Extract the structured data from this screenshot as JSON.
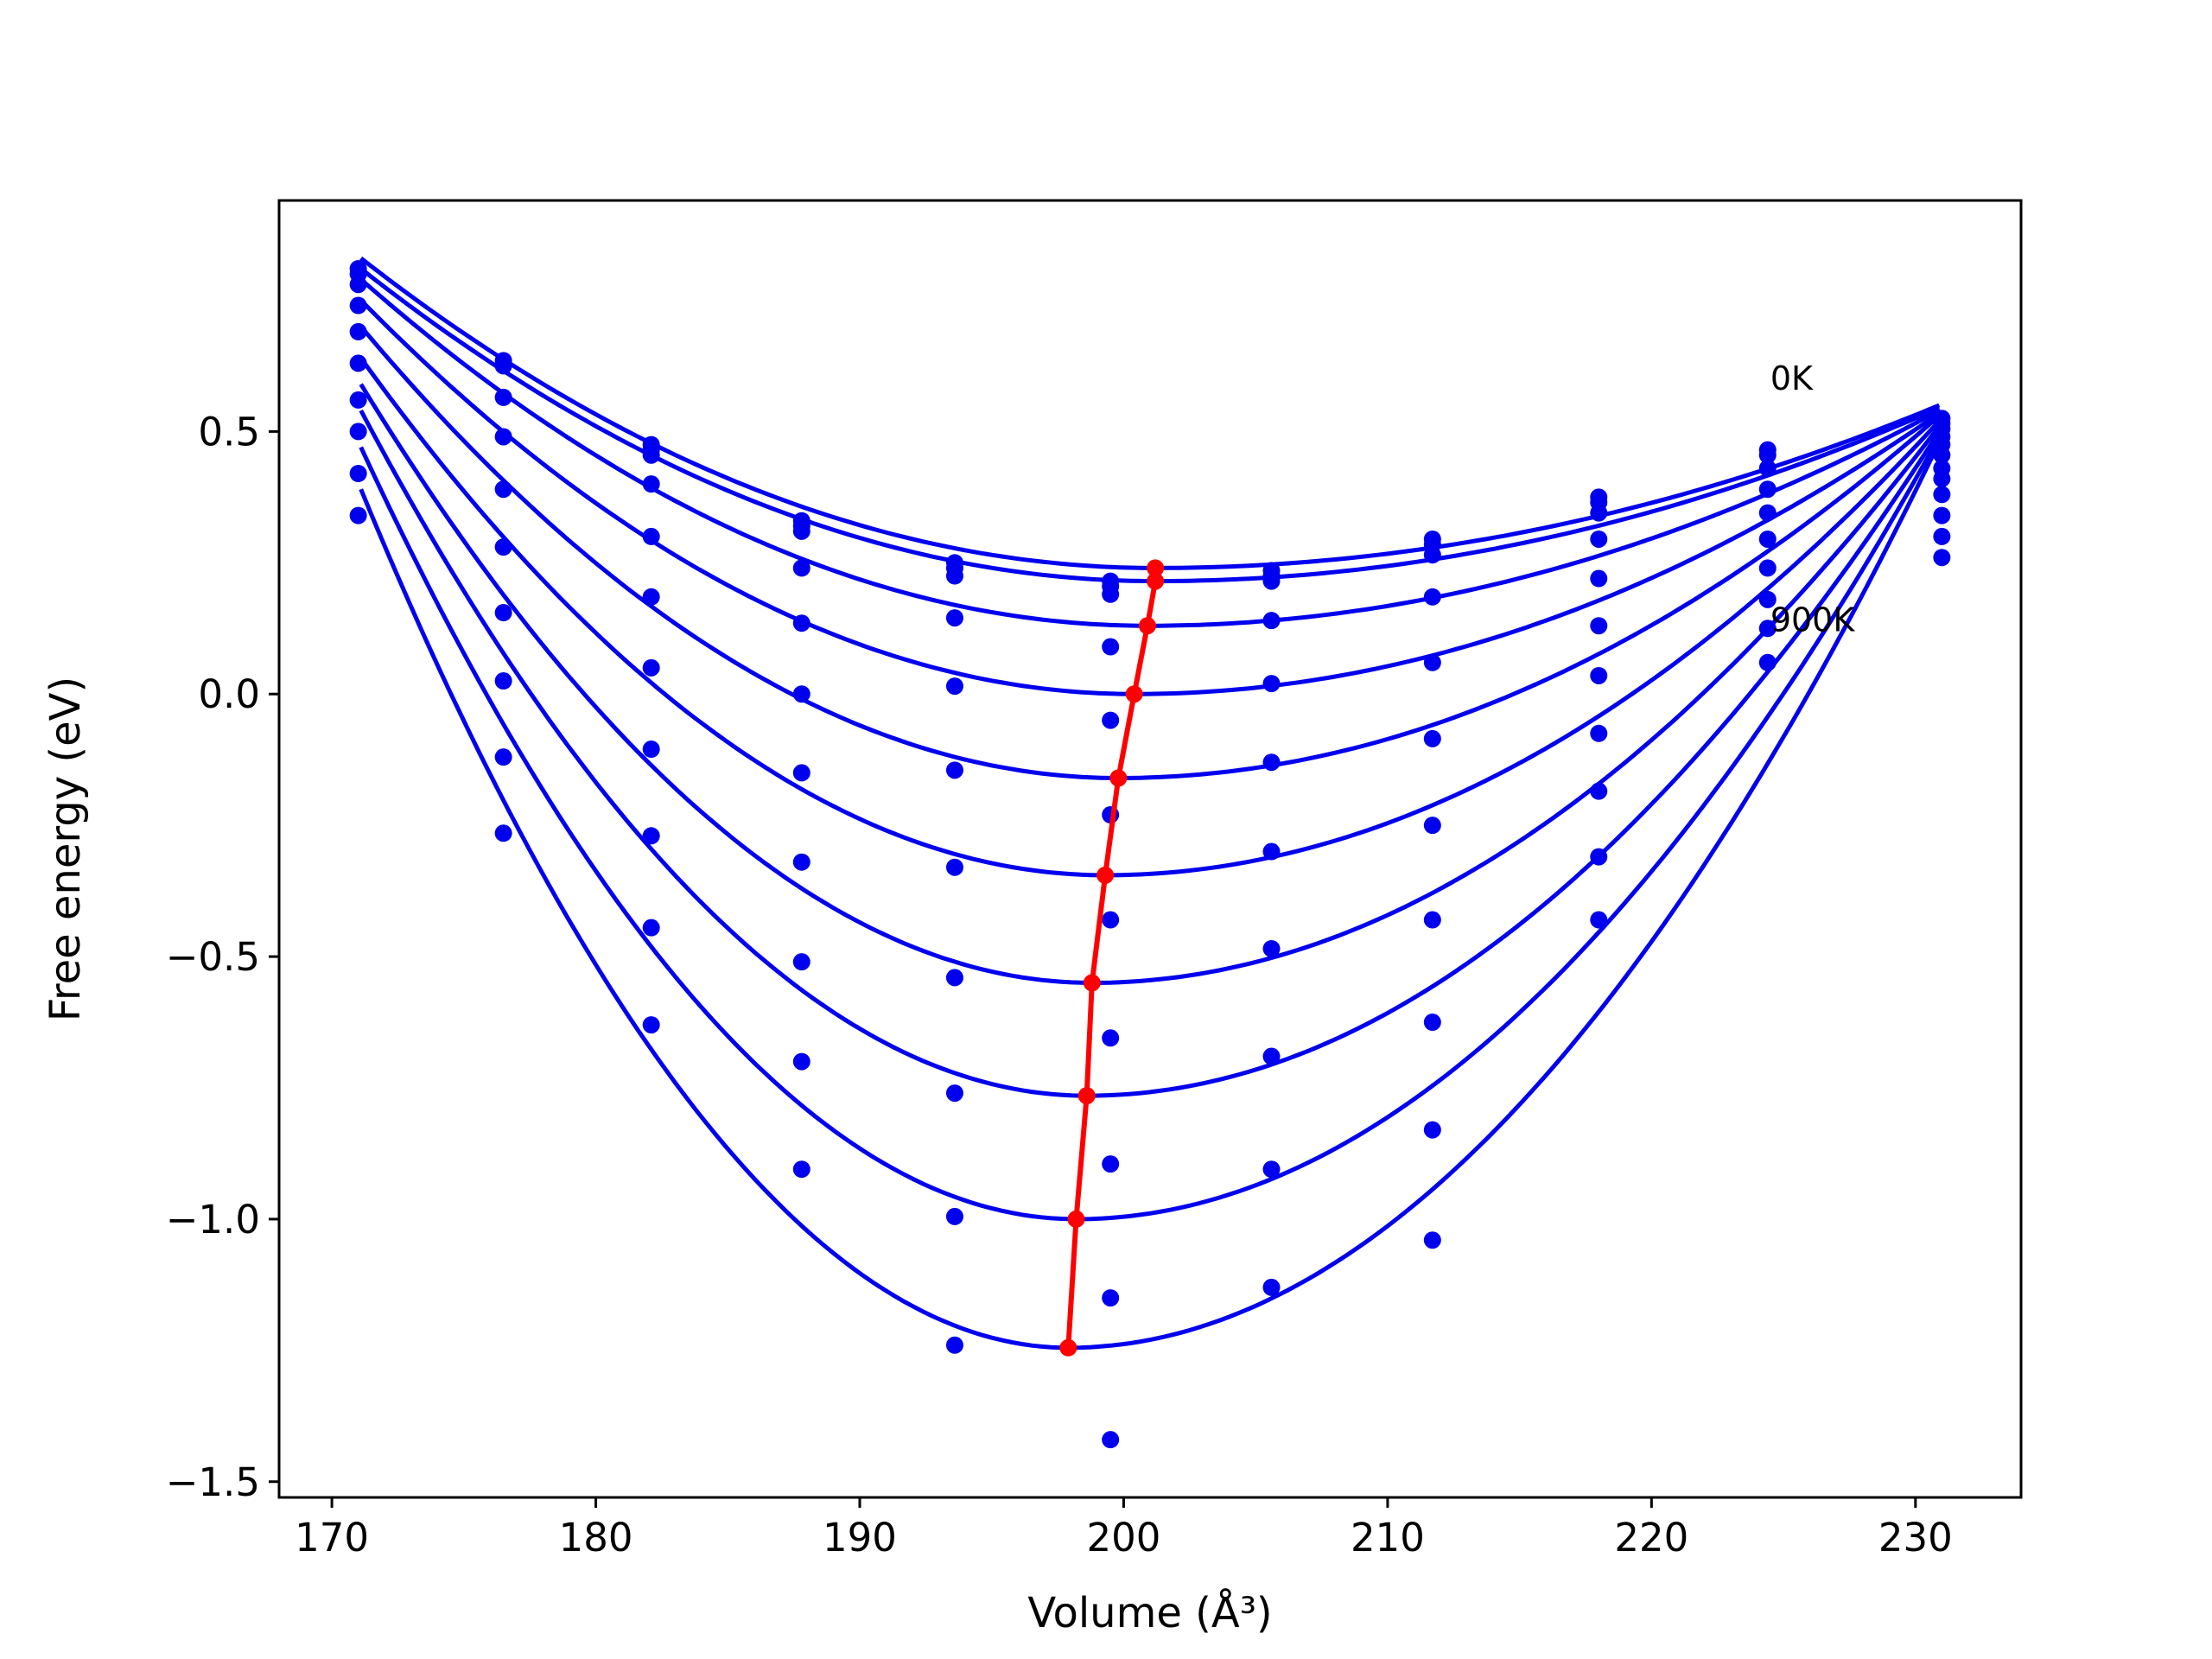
{
  "chart_data": {
    "type": "line",
    "title": "",
    "xlabel": "Volume (Å³)",
    "ylabel": "Free energy (eV)",
    "xlim": [
      168,
      234
    ],
    "ylim": [
      -1.53,
      0.94
    ],
    "xticks": [
      170,
      180,
      190,
      200,
      210,
      220,
      230
    ],
    "yticks": [
      {
        "value": 0.5,
        "label": "0.5"
      },
      {
        "value": 0.0,
        "label": "0.0"
      },
      {
        "value": -0.5,
        "label": "−0.5"
      },
      {
        "value": -1.0,
        "label": "−1.0"
      },
      {
        "value": -1.5,
        "label": "−1.5"
      }
    ],
    "grid": false,
    "annotations": [
      {
        "text": "0K",
        "x": 224.5,
        "y": 0.58
      },
      {
        "text": "900K",
        "x": 224.5,
        "y": 0.12
      }
    ],
    "colors": {
      "curves": "#0000ee",
      "minimum": "#ff0000",
      "axes": "#000000"
    },
    "curve_range": [
      171.1,
      230.9
    ],
    "curves": [
      {
        "minimum": [
          201.2,
          0.24
        ],
        "left": 0.83,
        "right": 0.55
      },
      {
        "minimum": [
          201.2,
          0.215
        ],
        "left": 0.81,
        "right": 0.545
      },
      {
        "minimum": [
          200.9,
          0.13
        ],
        "left": 0.79,
        "right": 0.54
      },
      {
        "minimum": [
          200.4,
          0.0
        ],
        "left": 0.75,
        "right": 0.535
      },
      {
        "minimum": [
          199.8,
          -0.16
        ],
        "left": 0.7,
        "right": 0.53
      },
      {
        "minimum": [
          199.3,
          -0.345
        ],
        "left": 0.64,
        "right": 0.52
      },
      {
        "minimum": [
          198.8,
          -0.55
        ],
        "left": 0.59,
        "right": 0.51
      },
      {
        "minimum": [
          198.6,
          -0.765
        ],
        "left": 0.54,
        "right": 0.5
      },
      {
        "minimum": [
          198.2,
          -1.0
        ],
        "left": 0.47,
        "right": 0.49
      },
      {
        "minimum": [
          197.9,
          -1.245
        ],
        "left": 0.39,
        "right": 0.48
      }
    ],
    "scatter": {
      "x": [
        171.0,
        176.5,
        182.1,
        187.8,
        193.6,
        199.5,
        205.6,
        211.7,
        218.0,
        224.4,
        231.0
      ],
      "series": [
        [
          0.81,
          0.635,
          0.475,
          0.33,
          0.25,
          0.215,
          0.235,
          0.295,
          0.375,
          0.465,
          0.525
        ],
        [
          0.8,
          0.625,
          0.465,
          0.32,
          0.24,
          0.205,
          0.225,
          0.285,
          0.365,
          0.455,
          0.515
        ],
        [
          0.78,
          0.565,
          0.455,
          0.31,
          0.225,
          0.19,
          0.215,
          0.265,
          0.345,
          0.43,
          0.505
        ],
        [
          0.74,
          0.49,
          0.4,
          0.24,
          0.145,
          0.09,
          0.14,
          0.185,
          0.295,
          0.39,
          0.49
        ],
        [
          0.69,
          0.39,
          0.3,
          0.135,
          0.015,
          -0.05,
          0.02,
          0.06,
          0.22,
          0.345,
          0.475
        ],
        [
          0.63,
          0.28,
          0.185,
          0.0,
          -0.145,
          -0.23,
          -0.13,
          -0.085,
          0.13,
          0.295,
          0.455
        ],
        [
          0.56,
          0.155,
          0.05,
          -0.15,
          -0.33,
          -0.43,
          -0.3,
          -0.25,
          0.035,
          0.24,
          0.43
        ],
        [
          0.5,
          0.025,
          -0.105,
          -0.32,
          -0.54,
          -0.655,
          -0.485,
          -0.43,
          -0.075,
          0.18,
          0.41
        ],
        [
          0.42,
          -0.12,
          -0.27,
          -0.51,
          -0.76,
          -0.895,
          -0.69,
          -0.625,
          -0.185,
          0.125,
          0.38
        ],
        [
          0.34,
          -0.265,
          -0.445,
          -0.7,
          -0.995,
          -1.15,
          -0.905,
          -0.83,
          -0.31,
          0.06,
          0.34
        ],
        [
          null,
          null,
          -0.63,
          -0.905,
          -1.24,
          -1.42,
          -1.13,
          -1.04,
          -0.43,
          null,
          0.3
        ],
        [
          null,
          null,
          null,
          null,
          null,
          null,
          null,
          null,
          null,
          null,
          0.26
        ]
      ]
    },
    "minimum_line": {
      "x": [
        201.2,
        201.2,
        200.9,
        200.4,
        199.8,
        199.3,
        198.8,
        198.6,
        198.2,
        197.9
      ],
      "y": [
        0.24,
        0.215,
        0.13,
        0.0,
        -0.16,
        -0.345,
        -0.55,
        -0.765,
        -1.0,
        -1.245
      ]
    }
  }
}
